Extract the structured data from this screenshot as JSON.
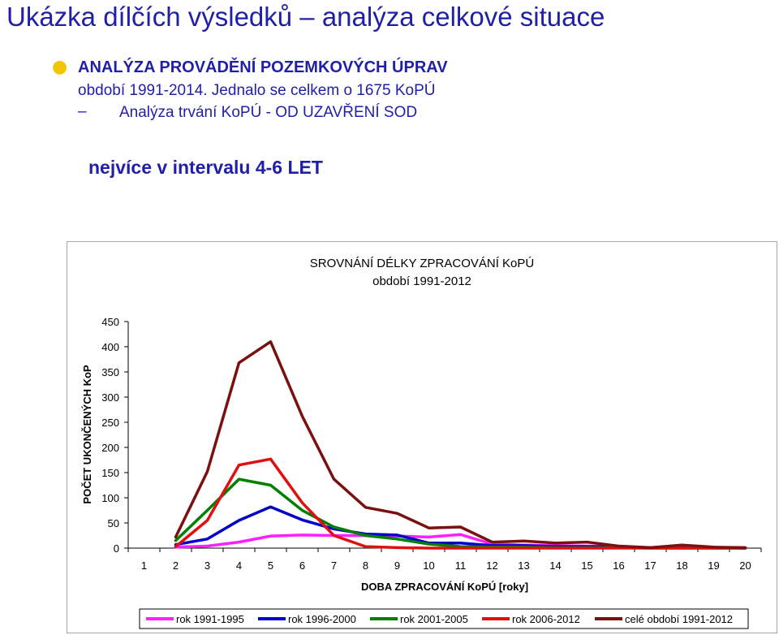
{
  "slide": {
    "title": "Ukázka dílčích výsledků – analýza celkové situace",
    "bullet_heading": "ANALÝZA PROVÁDĚNÍ POZEMKOVÝCH ÚPRAV",
    "bullet_text": "období 1991-2014. Jednalo se celkem o 1675 KoPÚ",
    "sub_dash": "–",
    "sub_text": "Analýza trvání KoPÚ - OD UZAVŘENÍ SOD",
    "highlight": "nejvíce v intervalu 4-6 LET"
  },
  "chart_data": {
    "type": "line",
    "title": "SROVNÁNÍ DÉLKY ZPRACOVÁNÍ KoPÚ",
    "subtitle": "období 1991-2012",
    "xlabel": "DOBA ZPRACOVÁNÍ KoPÚ [roky]",
    "ylabel": "POČET UKONČENÝCH KoP",
    "ylim": [
      0,
      450
    ],
    "yticks": [
      0,
      50,
      100,
      150,
      200,
      250,
      300,
      350,
      400,
      450
    ],
    "x": [
      1,
      2,
      3,
      4,
      5,
      6,
      7,
      8,
      9,
      10,
      11,
      12,
      13,
      14,
      15,
      16,
      17,
      18,
      19,
      20
    ],
    "legend_position": "bottom",
    "series": [
      {
        "name": "rok 1991-1995",
        "color": "#ff20ff",
        "x": [
          2,
          3,
          4,
          5,
          6,
          7,
          8,
          9,
          10,
          11,
          12,
          13,
          14,
          15,
          16,
          17,
          18,
          19,
          20
        ],
        "values": [
          2,
          4,
          12,
          24,
          26,
          25,
          25,
          24,
          22,
          27,
          8,
          6,
          5,
          4,
          3,
          1,
          1,
          1,
          0
        ]
      },
      {
        "name": "rok 1996-2000",
        "color": "#0000c8",
        "x": [
          2,
          3,
          4,
          5,
          6,
          7,
          8,
          9,
          10,
          11,
          12,
          13,
          14,
          15,
          16,
          17,
          18,
          19,
          20
        ],
        "values": [
          7,
          18,
          55,
          82,
          56,
          38,
          28,
          26,
          10,
          10,
          5,
          5,
          3,
          3,
          2,
          1,
          1,
          1,
          0
        ]
      },
      {
        "name": "rok 2001-2005",
        "color": "#008000",
        "x": [
          2,
          3,
          4,
          5,
          6,
          7,
          8,
          9,
          10,
          11,
          12,
          13,
          14,
          15,
          16,
          17,
          18,
          19,
          20
        ],
        "values": [
          15,
          75,
          137,
          125,
          75,
          42,
          25,
          18,
          8,
          3,
          2,
          2,
          1,
          1,
          1,
          0,
          0,
          0,
          0
        ]
      },
      {
        "name": "rok 2006-2012",
        "color": "#e01010",
        "x": [
          2,
          3,
          4,
          5,
          6,
          7,
          8,
          9,
          10,
          11,
          12,
          13,
          14,
          15,
          16,
          17,
          18,
          19,
          20
        ],
        "values": [
          3,
          55,
          165,
          177,
          90,
          25,
          3,
          1,
          0,
          0,
          0,
          0,
          0,
          0,
          0,
          0,
          0,
          0,
          0
        ]
      },
      {
        "name": "celé období 1991-2012",
        "color": "#7a1010",
        "x": [
          2,
          3,
          4,
          5,
          6,
          7,
          8,
          9,
          10,
          11,
          12,
          13,
          14,
          15,
          16,
          17,
          18,
          19,
          20
        ],
        "values": [
          22,
          152,
          368,
          410,
          262,
          137,
          81,
          69,
          40,
          42,
          12,
          14,
          10,
          12,
          4,
          1,
          6,
          2,
          1
        ]
      }
    ]
  }
}
